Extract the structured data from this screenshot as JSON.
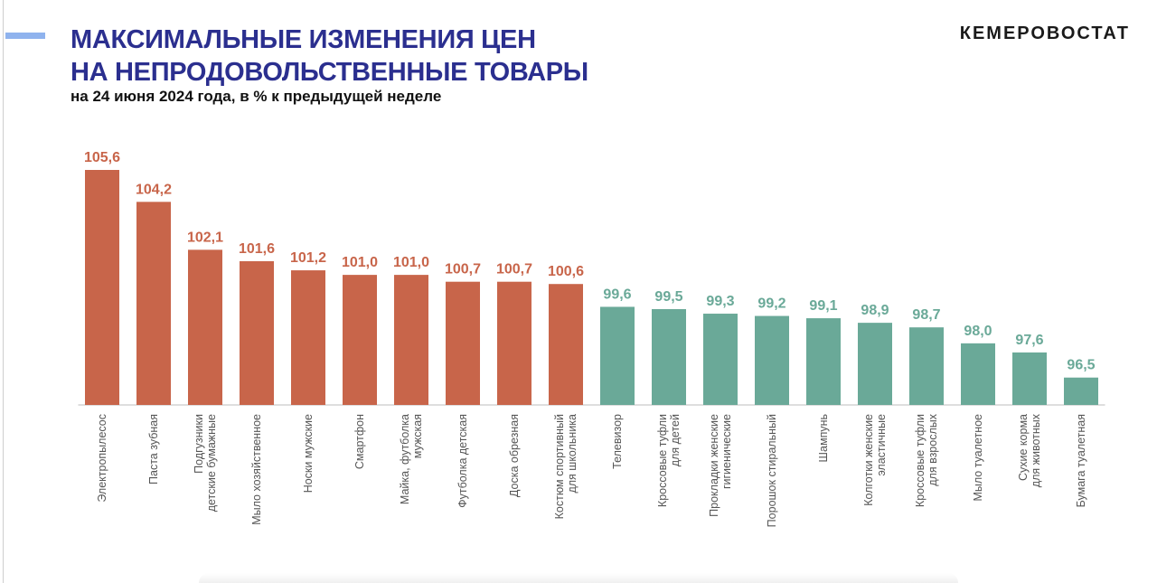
{
  "header": {
    "title_line1": "МАКСИМАЛЬНЫЕ ИЗМЕНЕНИЯ ЦЕН",
    "title_line2": "НА НЕПРОДОВОЛЬСТВЕННЫЕ ТОВАРЫ",
    "subtitle": "на 24 июня 2024 года, в % к предыдущей неделе",
    "brand": "КЕМЕРОВОСТАТ"
  },
  "colors": {
    "increase": "#c8654a",
    "decrease": "#6aa998",
    "title": "#2b2f8f"
  },
  "chart_data": {
    "type": "bar",
    "categories": [
      [
        "Электропылесос"
      ],
      [
        "Паста зубная"
      ],
      [
        "Подгузники",
        "детские бумажные"
      ],
      [
        "Мыло хозяйственное"
      ],
      [
        "Носки мужские"
      ],
      [
        "Смартфон"
      ],
      [
        "Майка, футболка",
        "мужская"
      ],
      [
        "Футболка детская"
      ],
      [
        "Доска обрезная"
      ],
      [
        "Костюм спортивный",
        "для школьника"
      ],
      [
        "Телевизор"
      ],
      [
        "Кроссовые туфли",
        "для детей"
      ],
      [
        "Прокладки женские",
        "гигиенические"
      ],
      [
        "Порошок стиральный"
      ],
      [
        "Шампунь"
      ],
      [
        "Колготки женские",
        "эластичные"
      ],
      [
        "Кроссовые туфли",
        "для взрослых"
      ],
      [
        "Мыло туалетное"
      ],
      [
        "Сухие корма",
        "для животных"
      ],
      [
        "Бумага туалетная"
      ]
    ],
    "values": [
      105.6,
      104.2,
      102.1,
      101.6,
      101.2,
      101.0,
      101.0,
      100.7,
      100.7,
      100.6,
      99.6,
      99.5,
      99.3,
      99.2,
      99.1,
      98.9,
      98.7,
      98.0,
      97.6,
      96.5
    ],
    "value_labels": [
      "105,6",
      "104,2",
      "102,1",
      "101,6",
      "101,2",
      "101,0",
      "101,0",
      "100,7",
      "100,7",
      "100,6",
      "99,6",
      "99,5",
      "99,3",
      "99,2",
      "99,1",
      "98,9",
      "98,7",
      "98,0",
      "97,6",
      "96,5"
    ],
    "ylim": [
      95.3,
      105.6
    ],
    "threshold": 100,
    "grid": false,
    "legend": "none"
  }
}
